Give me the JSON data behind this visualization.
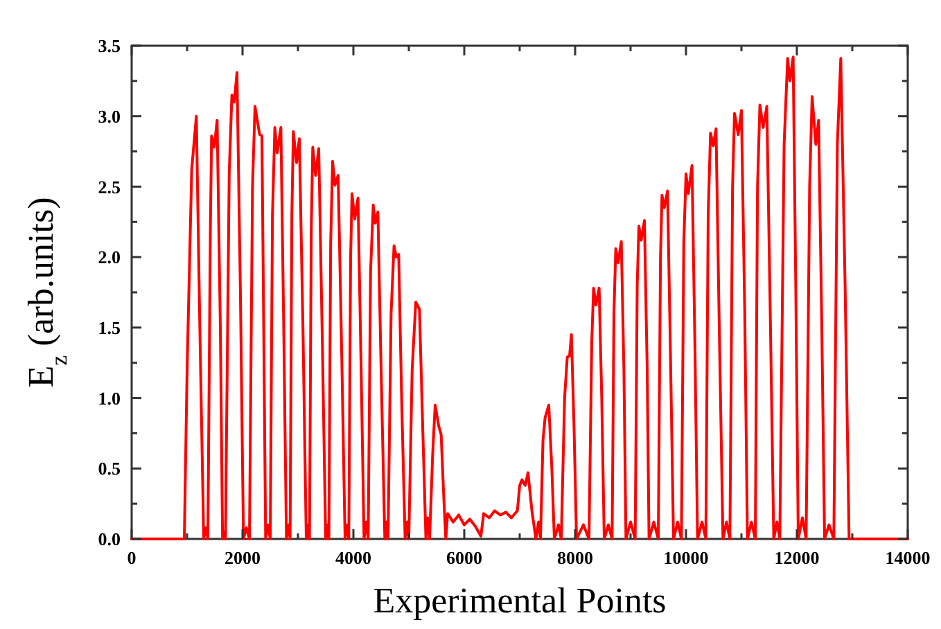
{
  "chart_data": {
    "type": "line",
    "xlabel": "Experimental Points",
    "ylabel": "E$_{z}$ (arb.units)",
    "xlim": [
      0,
      14000
    ],
    "ylim": [
      0,
      3.5
    ],
    "xticks": [
      0,
      {
        "value": 1000,
        "label": null
      },
      2000,
      {
        "value": 3000,
        "label": null
      },
      4000,
      {
        "value": 5000,
        "label": null
      },
      6000,
      {
        "value": 7000,
        "label": null
      },
      8000,
      {
        "value": 9000,
        "label": null
      },
      10000,
      {
        "value": 11000,
        "label": null
      },
      12000,
      {
        "value": 13000,
        "label": null
      },
      14000
    ],
    "yticks": [
      {
        "value": 0,
        "label": "0.0"
      },
      {
        "value": 0.25,
        "label": null
      },
      0.5,
      {
        "value": 0.75,
        "label": null
      },
      {
        "value": 1,
        "label": "1.0"
      },
      {
        "value": 1.25,
        "label": null
      },
      1.5,
      {
        "value": 1.75,
        "label": null
      },
      {
        "value": 2,
        "label": "2.0"
      },
      {
        "value": 2.25,
        "label": null
      },
      2.5,
      {
        "value": 2.75,
        "label": null
      },
      {
        "value": 3,
        "label": "3.0"
      },
      {
        "value": 3.25,
        "label": null
      },
      3.5
    ],
    "grid": false,
    "marker": "none",
    "line_style": "solid",
    "series": [
      {
        "color": "#ff0000",
        "x": [
          0,
          950,
          1000,
          1083,
          1167,
          1230,
          1300,
          1340,
          1375,
          1420,
          1442,
          1490,
          1542,
          1600,
          1640,
          1670,
          1692,
          1760,
          1808,
          1850,
          1900,
          1960,
          2017,
          2070,
          2125,
          2180,
          2225,
          2308,
          2350,
          2380,
          2417,
          2460,
          2500,
          2540,
          2583,
          2625,
          2692,
          2740,
          2792,
          2830,
          2858,
          2890,
          2917,
          2975,
          3025,
          3090,
          3150,
          3180,
          3208,
          3240,
          3267,
          3317,
          3375,
          3440,
          3500,
          3530,
          3558,
          3590,
          3625,
          3667,
          3725,
          3790,
          3850,
          3880,
          3917,
          3950,
          3975,
          4025,
          4083,
          4140,
          4192,
          4230,
          4267,
          4310,
          4358,
          4392,
          4442,
          4500,
          4567,
          4600,
          4625,
          4680,
          4733,
          4775,
          4817,
          4870,
          4933,
          4970,
          5000,
          5060,
          5125,
          5192,
          5250,
          5308,
          5340,
          5375,
          5430,
          5475,
          5540,
          5583,
          5630,
          5667,
          5700,
          5800,
          5900,
          6000,
          6100,
          6200,
          6300,
          6350,
          6450,
          6550,
          6650,
          6750,
          6850,
          6958,
          7000,
          7042,
          7100,
          7150,
          7220,
          7292,
          7340,
          7375,
          7420,
          7458,
          7525,
          7580,
          7625,
          7700,
          7750,
          7810,
          7858,
          7900,
          7933,
          7980,
          8025,
          8150,
          8250,
          8300,
          8333,
          8375,
          8433,
          8480,
          8525,
          8600,
          8667,
          8700,
          8733,
          8775,
          8833,
          8880,
          8917,
          9000,
          9083,
          9120,
          9150,
          9192,
          9250,
          9300,
          9333,
          9420,
          9500,
          9540,
          9567,
          9608,
          9667,
          9720,
          9775,
          9850,
          9917,
          9960,
          10000,
          10042,
          10108,
          10160,
          10208,
          10290,
          10358,
          10400,
          10442,
          10492,
          10542,
          10600,
          10667,
          10730,
          10792,
          10840,
          10875,
          10942,
          11000,
          11060,
          11108,
          11180,
          11250,
          11290,
          11333,
          11392,
          11458,
          11520,
          11583,
          11640,
          11692,
          11770,
          11833,
          11875,
          11933,
          11980,
          12025,
          12100,
          12167,
          12230,
          12275,
          12342,
          12392,
          12450,
          12500,
          12580,
          12667,
          12730,
          12792,
          12870,
          12942,
          14000
        ],
        "values": [
          0,
          0,
          1.2,
          2.62,
          3.0,
          1.5,
          0,
          0.08,
          0,
          2.2,
          2.86,
          2.78,
          2.97,
          1.5,
          0,
          0.05,
          0,
          2.6,
          3.15,
          3.1,
          3.31,
          1.8,
          0,
          0.08,
          0,
          2.5,
          3.07,
          2.87,
          2.86,
          1.6,
          0,
          0.1,
          0,
          2.3,
          2.92,
          2.74,
          2.92,
          1.6,
          0,
          0.1,
          0,
          2.3,
          2.89,
          2.67,
          2.84,
          1.5,
          0,
          0.1,
          0,
          2.2,
          2.78,
          2.58,
          2.77,
          1.4,
          0,
          0.1,
          0,
          2.1,
          2.68,
          2.51,
          2.58,
          1.3,
          0,
          0.1,
          0,
          2.0,
          2.45,
          2.27,
          2.42,
          1.2,
          0,
          0.12,
          0,
          1.9,
          2.37,
          2.24,
          2.32,
          1.2,
          0,
          0.12,
          0,
          1.6,
          2.08,
          2.0,
          2.02,
          1.0,
          0,
          0.12,
          0,
          1.2,
          1.68,
          1.63,
          0.8,
          0,
          0.15,
          0,
          0.6,
          0.95,
          0.8,
          0.74,
          0.3,
          0,
          0.18,
          0.12,
          0.17,
          0.1,
          0.14,
          0.09,
          0.02,
          0.18,
          0.15,
          0.2,
          0.17,
          0.19,
          0.15,
          0.2,
          0.38,
          0.42,
          0.38,
          0.47,
          0.2,
          0,
          0.12,
          0,
          0.7,
          0.86,
          0.95,
          0.5,
          0,
          0.1,
          0,
          1.0,
          1.29,
          1.3,
          1.45,
          0.8,
          0,
          0.1,
          0,
          1.4,
          1.78,
          1.66,
          1.78,
          1.0,
          0,
          0.1,
          0,
          1.6,
          2.06,
          1.96,
          2.11,
          1.2,
          0,
          0.12,
          0,
          1.8,
          2.22,
          2.12,
          2.26,
          1.2,
          0,
          0.12,
          0,
          2.0,
          2.44,
          2.35,
          2.47,
          1.3,
          0,
          0.12,
          0,
          2.1,
          2.59,
          2.45,
          2.65,
          1.4,
          0,
          0.12,
          0,
          2.3,
          2.88,
          2.79,
          2.91,
          1.5,
          0,
          0.12,
          0,
          2.5,
          3.02,
          2.87,
          3.04,
          1.6,
          0,
          0.12,
          0,
          2.5,
          3.08,
          2.92,
          3.07,
          1.6,
          0,
          0.12,
          0,
          2.8,
          3.41,
          3.25,
          3.42,
          1.8,
          0,
          0.15,
          0,
          2.5,
          3.14,
          2.8,
          2.97,
          1.5,
          0,
          0.1,
          0,
          2.8,
          3.41,
          1.8,
          0,
          0
        ]
      }
    ]
  }
}
